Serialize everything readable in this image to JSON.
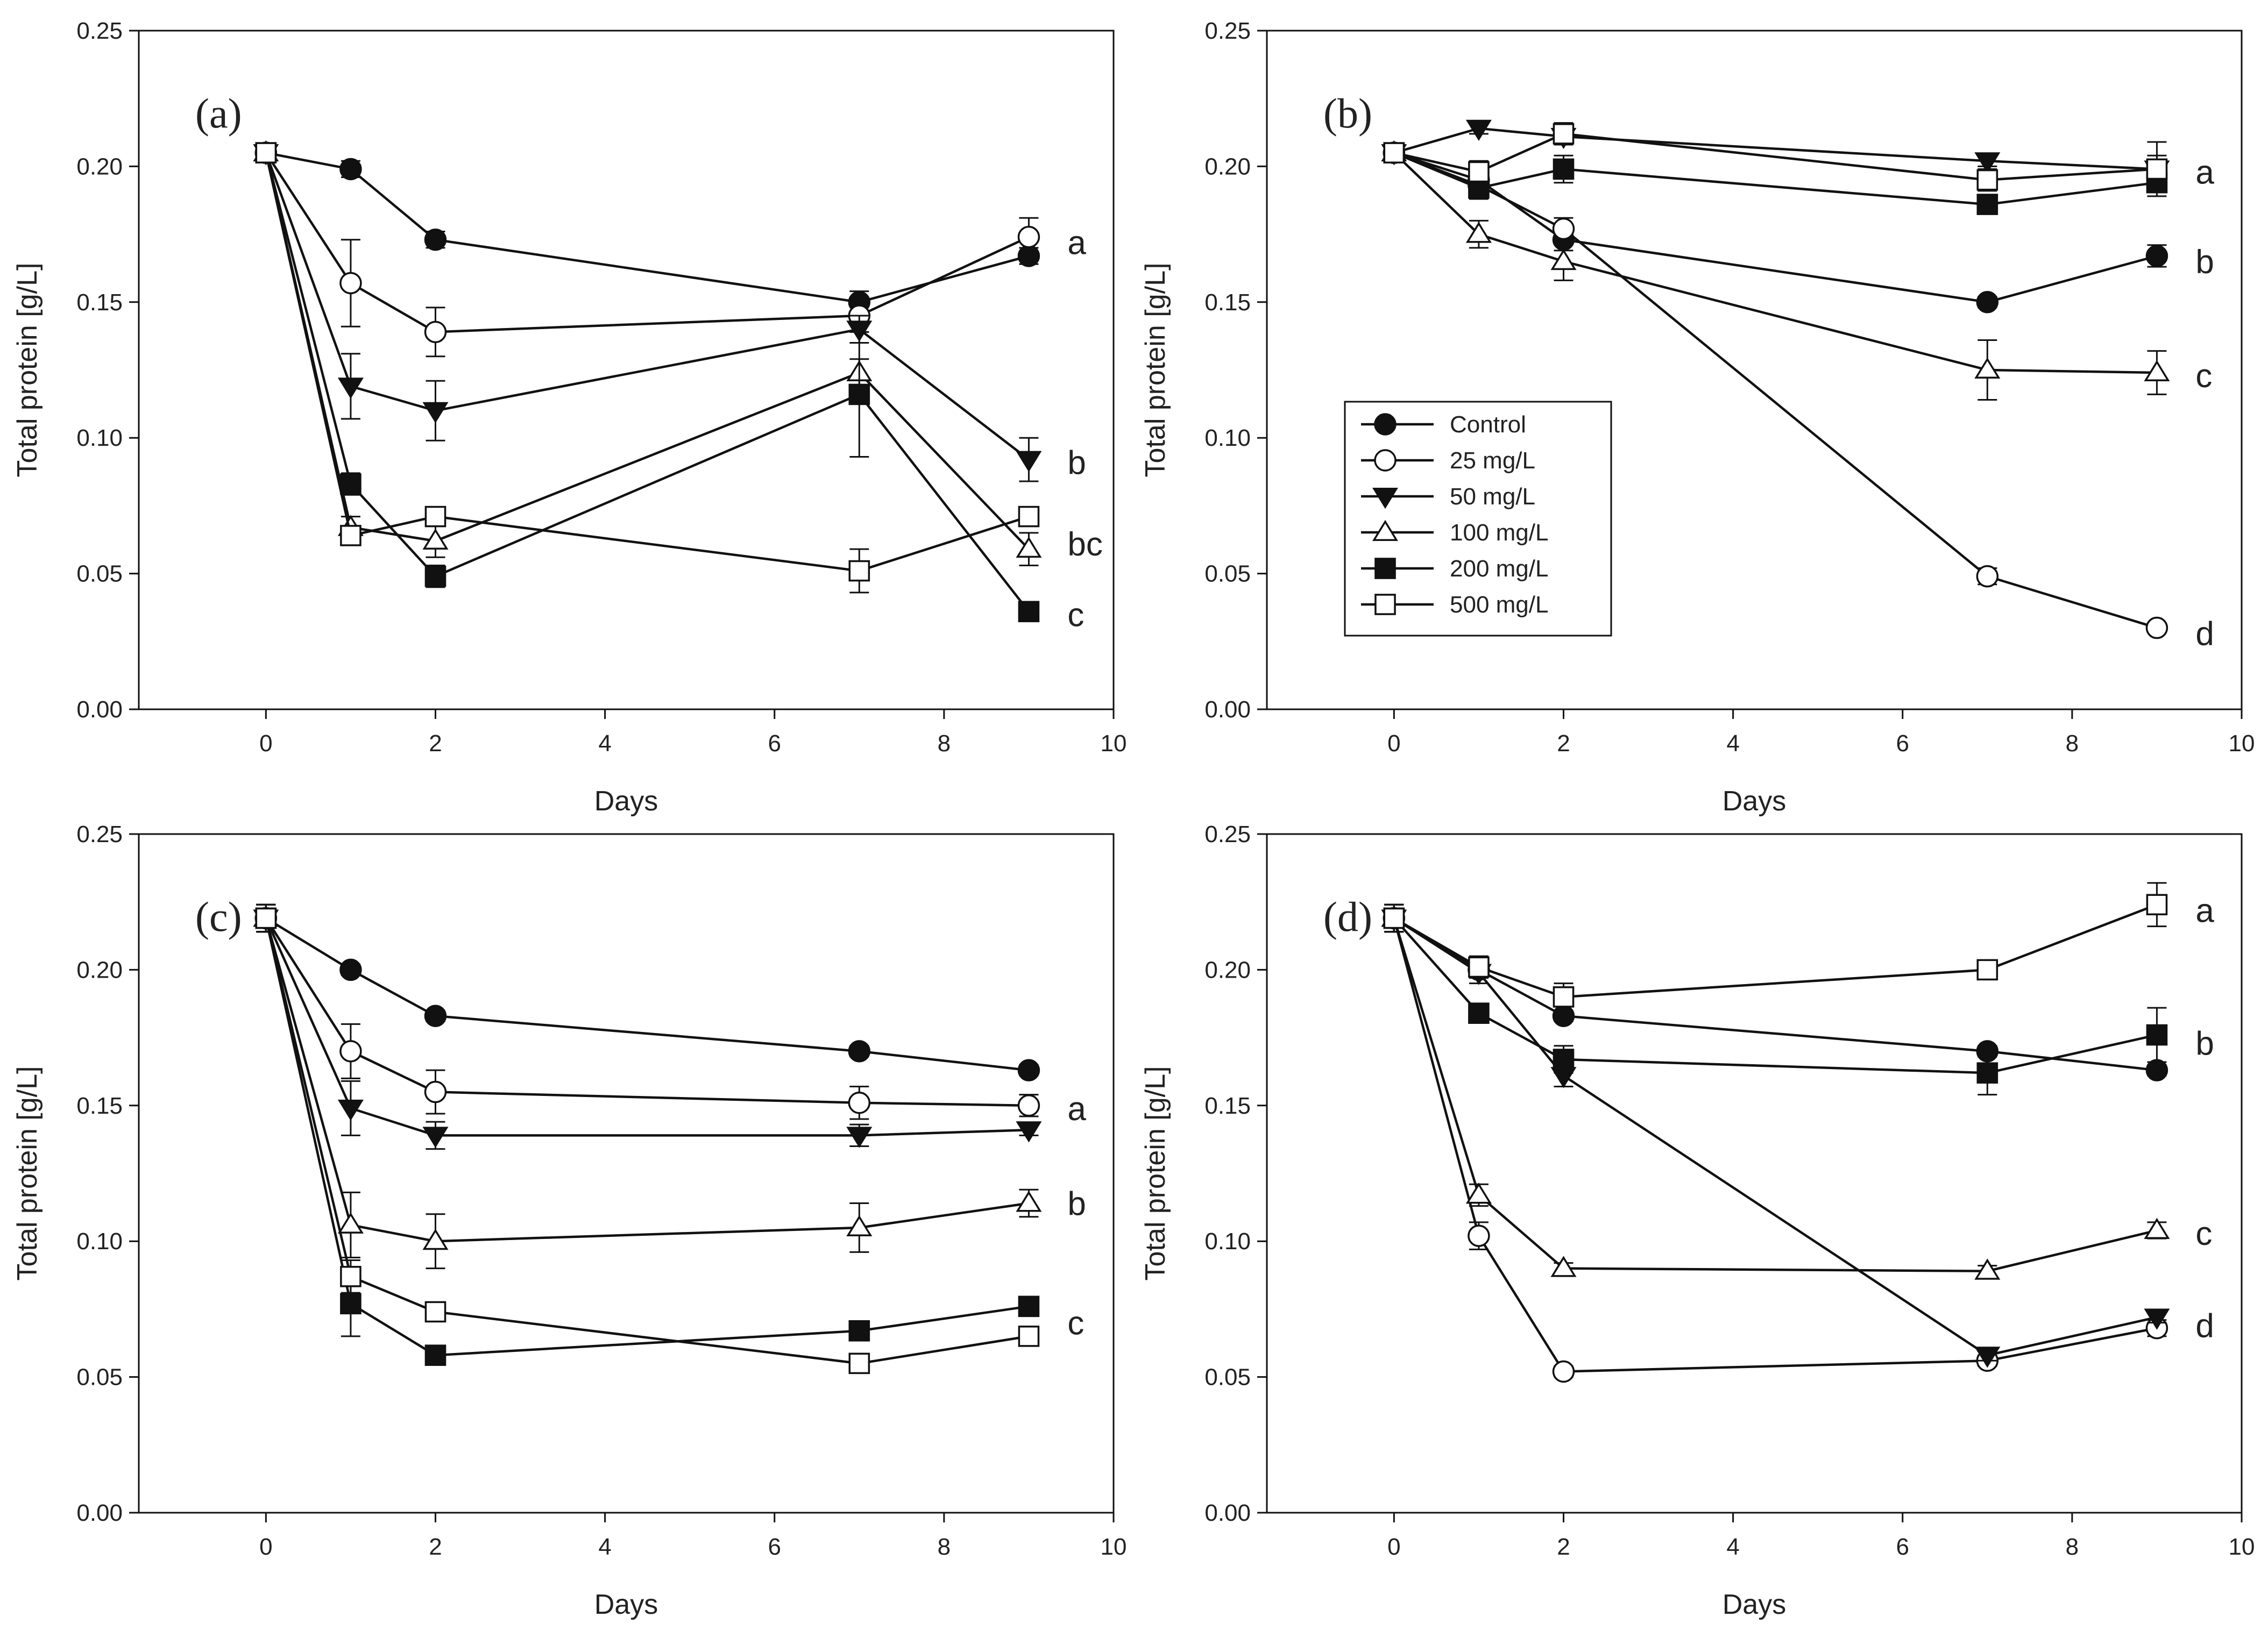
{
  "chart_data": [
    {
      "type": "line",
      "panel_label": "(a)",
      "xlabel": "Days",
      "ylabel": "Total protein [g/L]",
      "xlim": [
        -1.5,
        10
      ],
      "ylim": [
        0,
        0.25
      ],
      "xticks": [
        "0",
        "2",
        "4",
        "6",
        "8",
        "10"
      ],
      "yticks": [
        "0.00",
        "0.05",
        "0.10",
        "0.15",
        "0.20",
        "0.25"
      ],
      "x": [
        0,
        1,
        2,
        7,
        9
      ],
      "series": [
        {
          "name": "Control",
          "marker": "filled-circle",
          "values": [
            0.205,
            0.199,
            0.173,
            0.15,
            0.167
          ],
          "errors": [
            0.002,
            0.003,
            0.003,
            0.004,
            0.003
          ]
        },
        {
          "name": "25 mg/L",
          "marker": "open-circle",
          "values": [
            0.205,
            0.157,
            0.139,
            0.145,
            0.174
          ],
          "errors": [
            0.002,
            0.016,
            0.009,
            0.006,
            0.007
          ]
        },
        {
          "name": "50 mg/L",
          "marker": "filled-triangle-down",
          "values": [
            0.205,
            0.119,
            0.11,
            0.14,
            0.092
          ],
          "errors": [
            0.002,
            0.012,
            0.011,
            0.005,
            0.008
          ]
        },
        {
          "name": "100 mg/L",
          "marker": "open-triangle-up",
          "values": [
            0.205,
            0.067,
            0.062,
            0.124,
            0.059
          ],
          "errors": [
            0.002,
            0.004,
            0.006,
            0.005,
            0.006
          ]
        },
        {
          "name": "200 mg/L",
          "marker": "filled-square",
          "values": [
            0.205,
            0.083,
            0.049,
            0.116,
            0.036
          ],
          "errors": [
            0.002,
            0.004,
            0.004,
            0.023,
            0.002
          ]
        },
        {
          "name": "500 mg/L",
          "marker": "open-square",
          "values": [
            0.205,
            0.064,
            0.071,
            0.051,
            0.071
          ],
          "errors": [
            0.002,
            0.003,
            0.003,
            0.008,
            0.003
          ]
        }
      ],
      "group_letters": [
        {
          "text": "a",
          "y": 0.172
        },
        {
          "text": "b",
          "y": 0.091
        },
        {
          "text": "bc",
          "y": 0.061
        },
        {
          "text": "c",
          "y": 0.035
        }
      ]
    },
    {
      "type": "line",
      "panel_label": "(b)",
      "xlabel": "Days",
      "ylabel": "Total protein [g/L]",
      "xlim": [
        -1.5,
        10
      ],
      "ylim": [
        0,
        0.25
      ],
      "xticks": [
        "0",
        "2",
        "4",
        "6",
        "8",
        "10"
      ],
      "yticks": [
        "0.00",
        "0.05",
        "0.10",
        "0.15",
        "0.20",
        "0.25"
      ],
      "legend": "center-left",
      "x": [
        0,
        1,
        2,
        7,
        9
      ],
      "series": [
        {
          "name": "Control",
          "marker": "filled-circle",
          "values": [
            0.205,
            0.195,
            0.173,
            0.15,
            0.167
          ],
          "errors": [
            0.002,
            0.004,
            0.004,
            0.002,
            0.004
          ]
        },
        {
          "name": "25 mg/L",
          "marker": "open-circle",
          "values": [
            0.205,
            0.193,
            0.177,
            0.049,
            0.03
          ],
          "errors": [
            0.002,
            0.004,
            0.004,
            0.003,
            0.001
          ]
        },
        {
          "name": "50 mg/L",
          "marker": "filled-triangle-down",
          "values": [
            0.205,
            0.214,
            0.211,
            0.202,
            0.199
          ],
          "errors": [
            0.002,
            0.002,
            0.003,
            0.002,
            0.005
          ]
        },
        {
          "name": "100 mg/L",
          "marker": "open-triangle-up",
          "values": [
            0.205,
            0.175,
            0.165,
            0.125,
            0.124
          ],
          "errors": [
            0.002,
            0.005,
            0.007,
            0.011,
            0.008
          ]
        },
        {
          "name": "200 mg/L",
          "marker": "filled-square",
          "values": [
            0.205,
            0.192,
            0.199,
            0.186,
            0.194
          ],
          "errors": [
            0.002,
            0.004,
            0.005,
            0.002,
            0.003
          ]
        },
        {
          "name": "500 mg/L",
          "marker": "open-square",
          "values": [
            0.205,
            0.198,
            0.212,
            0.195,
            0.199
          ],
          "errors": [
            0.002,
            0.004,
            0.004,
            0.004,
            0.01
          ]
        }
      ],
      "group_letters": [
        {
          "text": "a",
          "y": 0.198
        },
        {
          "text": "b",
          "y": 0.165
        },
        {
          "text": "c",
          "y": 0.123
        },
        {
          "text": "d",
          "y": 0.028
        }
      ]
    },
    {
      "type": "line",
      "panel_label": "(c)",
      "xlabel": "Days",
      "ylabel": "Total protein [g/L]",
      "xlim": [
        -1.5,
        10
      ],
      "ylim": [
        0,
        0.25
      ],
      "xticks": [
        "0",
        "2",
        "4",
        "6",
        "8",
        "10"
      ],
      "yticks": [
        "0.00",
        "0.05",
        "0.10",
        "0.15",
        "0.20",
        "0.25"
      ],
      "x": [
        0,
        1,
        2,
        7,
        9
      ],
      "series": [
        {
          "name": "Control",
          "marker": "filled-circle",
          "values": [
            0.219,
            0.2,
            0.183,
            0.17,
            0.163
          ],
          "errors": [
            0.005,
            0.002,
            0.002,
            0.002,
            0.002
          ]
        },
        {
          "name": "25 mg/L",
          "marker": "open-circle",
          "values": [
            0.219,
            0.17,
            0.155,
            0.151,
            0.15
          ],
          "errors": [
            0.005,
            0.01,
            0.008,
            0.006,
            0.004
          ]
        },
        {
          "name": "50 mg/L",
          "marker": "filled-triangle-down",
          "values": [
            0.219,
            0.149,
            0.139,
            0.139,
            0.141
          ],
          "errors": [
            0.005,
            0.01,
            0.005,
            0.004,
            0.002
          ]
        },
        {
          "name": "100 mg/L",
          "marker": "open-triangle-up",
          "values": [
            0.219,
            0.106,
            0.1,
            0.105,
            0.114
          ],
          "errors": [
            0.005,
            0.012,
            0.01,
            0.009,
            0.005
          ]
        },
        {
          "name": "200 mg/L",
          "marker": "filled-square",
          "values": [
            0.219,
            0.077,
            0.058,
            0.067,
            0.076
          ],
          "errors": [
            0.005,
            0.012,
            0.002,
            0.002,
            0.002
          ]
        },
        {
          "name": "500 mg/L",
          "marker": "open-square",
          "values": [
            0.219,
            0.087,
            0.074,
            0.055,
            0.065
          ],
          "errors": [
            0.005,
            0.006,
            0.002,
            0.002,
            0.002
          ]
        }
      ],
      "group_letters": [
        {
          "text": "a",
          "y": 0.149
        },
        {
          "text": "b",
          "y": 0.114
        },
        {
          "text": "c",
          "y": 0.07
        }
      ]
    },
    {
      "type": "line",
      "panel_label": "(d)",
      "xlabel": "Days",
      "ylabel": "Total protein [g/L]",
      "xlim": [
        -1.5,
        10
      ],
      "ylim": [
        0,
        0.25
      ],
      "xticks": [
        "0",
        "2",
        "4",
        "6",
        "8",
        "10"
      ],
      "yticks": [
        "0.00",
        "0.05",
        "0.10",
        "0.15",
        "0.20",
        "0.25"
      ],
      "x": [
        0,
        1,
        2,
        7,
        9
      ],
      "series": [
        {
          "name": "Control",
          "marker": "filled-circle",
          "values": [
            0.219,
            0.2,
            0.183,
            0.17,
            0.163
          ],
          "errors": [
            0.005,
            0.002,
            0.002,
            0.002,
            0.002
          ]
        },
        {
          "name": "25 mg/L",
          "marker": "open-circle",
          "values": [
            0.219,
            0.102,
            0.052,
            0.056,
            0.068
          ],
          "errors": [
            0.005,
            0.005,
            0.002,
            0.002,
            0.003
          ]
        },
        {
          "name": "50 mg/L",
          "marker": "filled-triangle-down",
          "values": [
            0.219,
            0.199,
            0.161,
            0.058,
            0.072
          ],
          "errors": [
            0.005,
            0.004,
            0.004,
            0.002,
            0.002
          ]
        },
        {
          "name": "100 mg/L",
          "marker": "open-triangle-up",
          "values": [
            0.219,
            0.117,
            0.09,
            0.089,
            0.104
          ],
          "errors": [
            0.005,
            0.004,
            0.002,
            0.002,
            0.003
          ]
        },
        {
          "name": "200 mg/L",
          "marker": "filled-square",
          "values": [
            0.219,
            0.184,
            0.167,
            0.162,
            0.176
          ],
          "errors": [
            0.005,
            0.003,
            0.005,
            0.008,
            0.01
          ]
        },
        {
          "name": "500 mg/L",
          "marker": "open-square",
          "values": [
            0.219,
            0.201,
            0.19,
            0.2,
            0.224
          ],
          "errors": [
            0.005,
            0.004,
            0.005,
            0.003,
            0.008
          ]
        }
      ],
      "group_letters": [
        {
          "text": "a",
          "y": 0.222
        },
        {
          "text": "b",
          "y": 0.173
        },
        {
          "text": "c",
          "y": 0.103
        },
        {
          "text": "d",
          "y": 0.069
        }
      ]
    }
  ]
}
